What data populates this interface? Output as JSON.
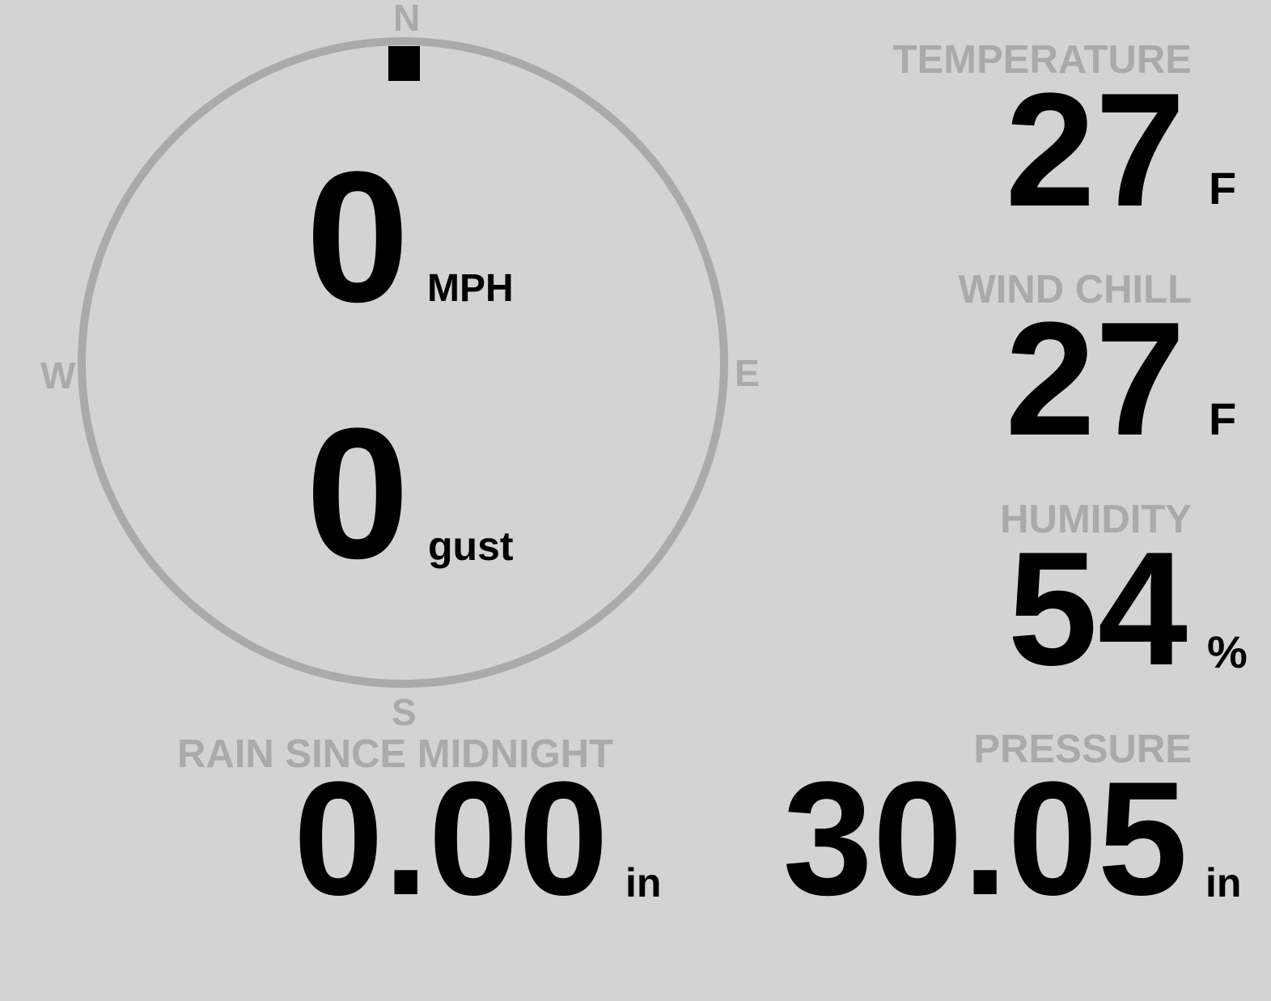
{
  "compass": {
    "n": "N",
    "e": "E",
    "s": "S",
    "w": "W",
    "direction_deg": 0
  },
  "wind": {
    "speed": "0",
    "speed_unit": "MPH",
    "gust": "0",
    "gust_unit": "gust"
  },
  "temperature": {
    "label": "TEMPERATURE",
    "value": "27",
    "unit": "F"
  },
  "wind_chill": {
    "label": "WIND CHILL",
    "value": "27",
    "unit": "F"
  },
  "humidity": {
    "label": "HUMIDITY",
    "value": "54",
    "unit": "%"
  },
  "rain": {
    "label": "RAIN SINCE MIDNIGHT",
    "value": "0.00",
    "unit": "in"
  },
  "pressure": {
    "label": "PRESSURE",
    "value": "30.05",
    "unit": "in"
  },
  "colors": {
    "background": "#d3d3d3",
    "muted": "#aaaaaa",
    "value": "#000000"
  }
}
